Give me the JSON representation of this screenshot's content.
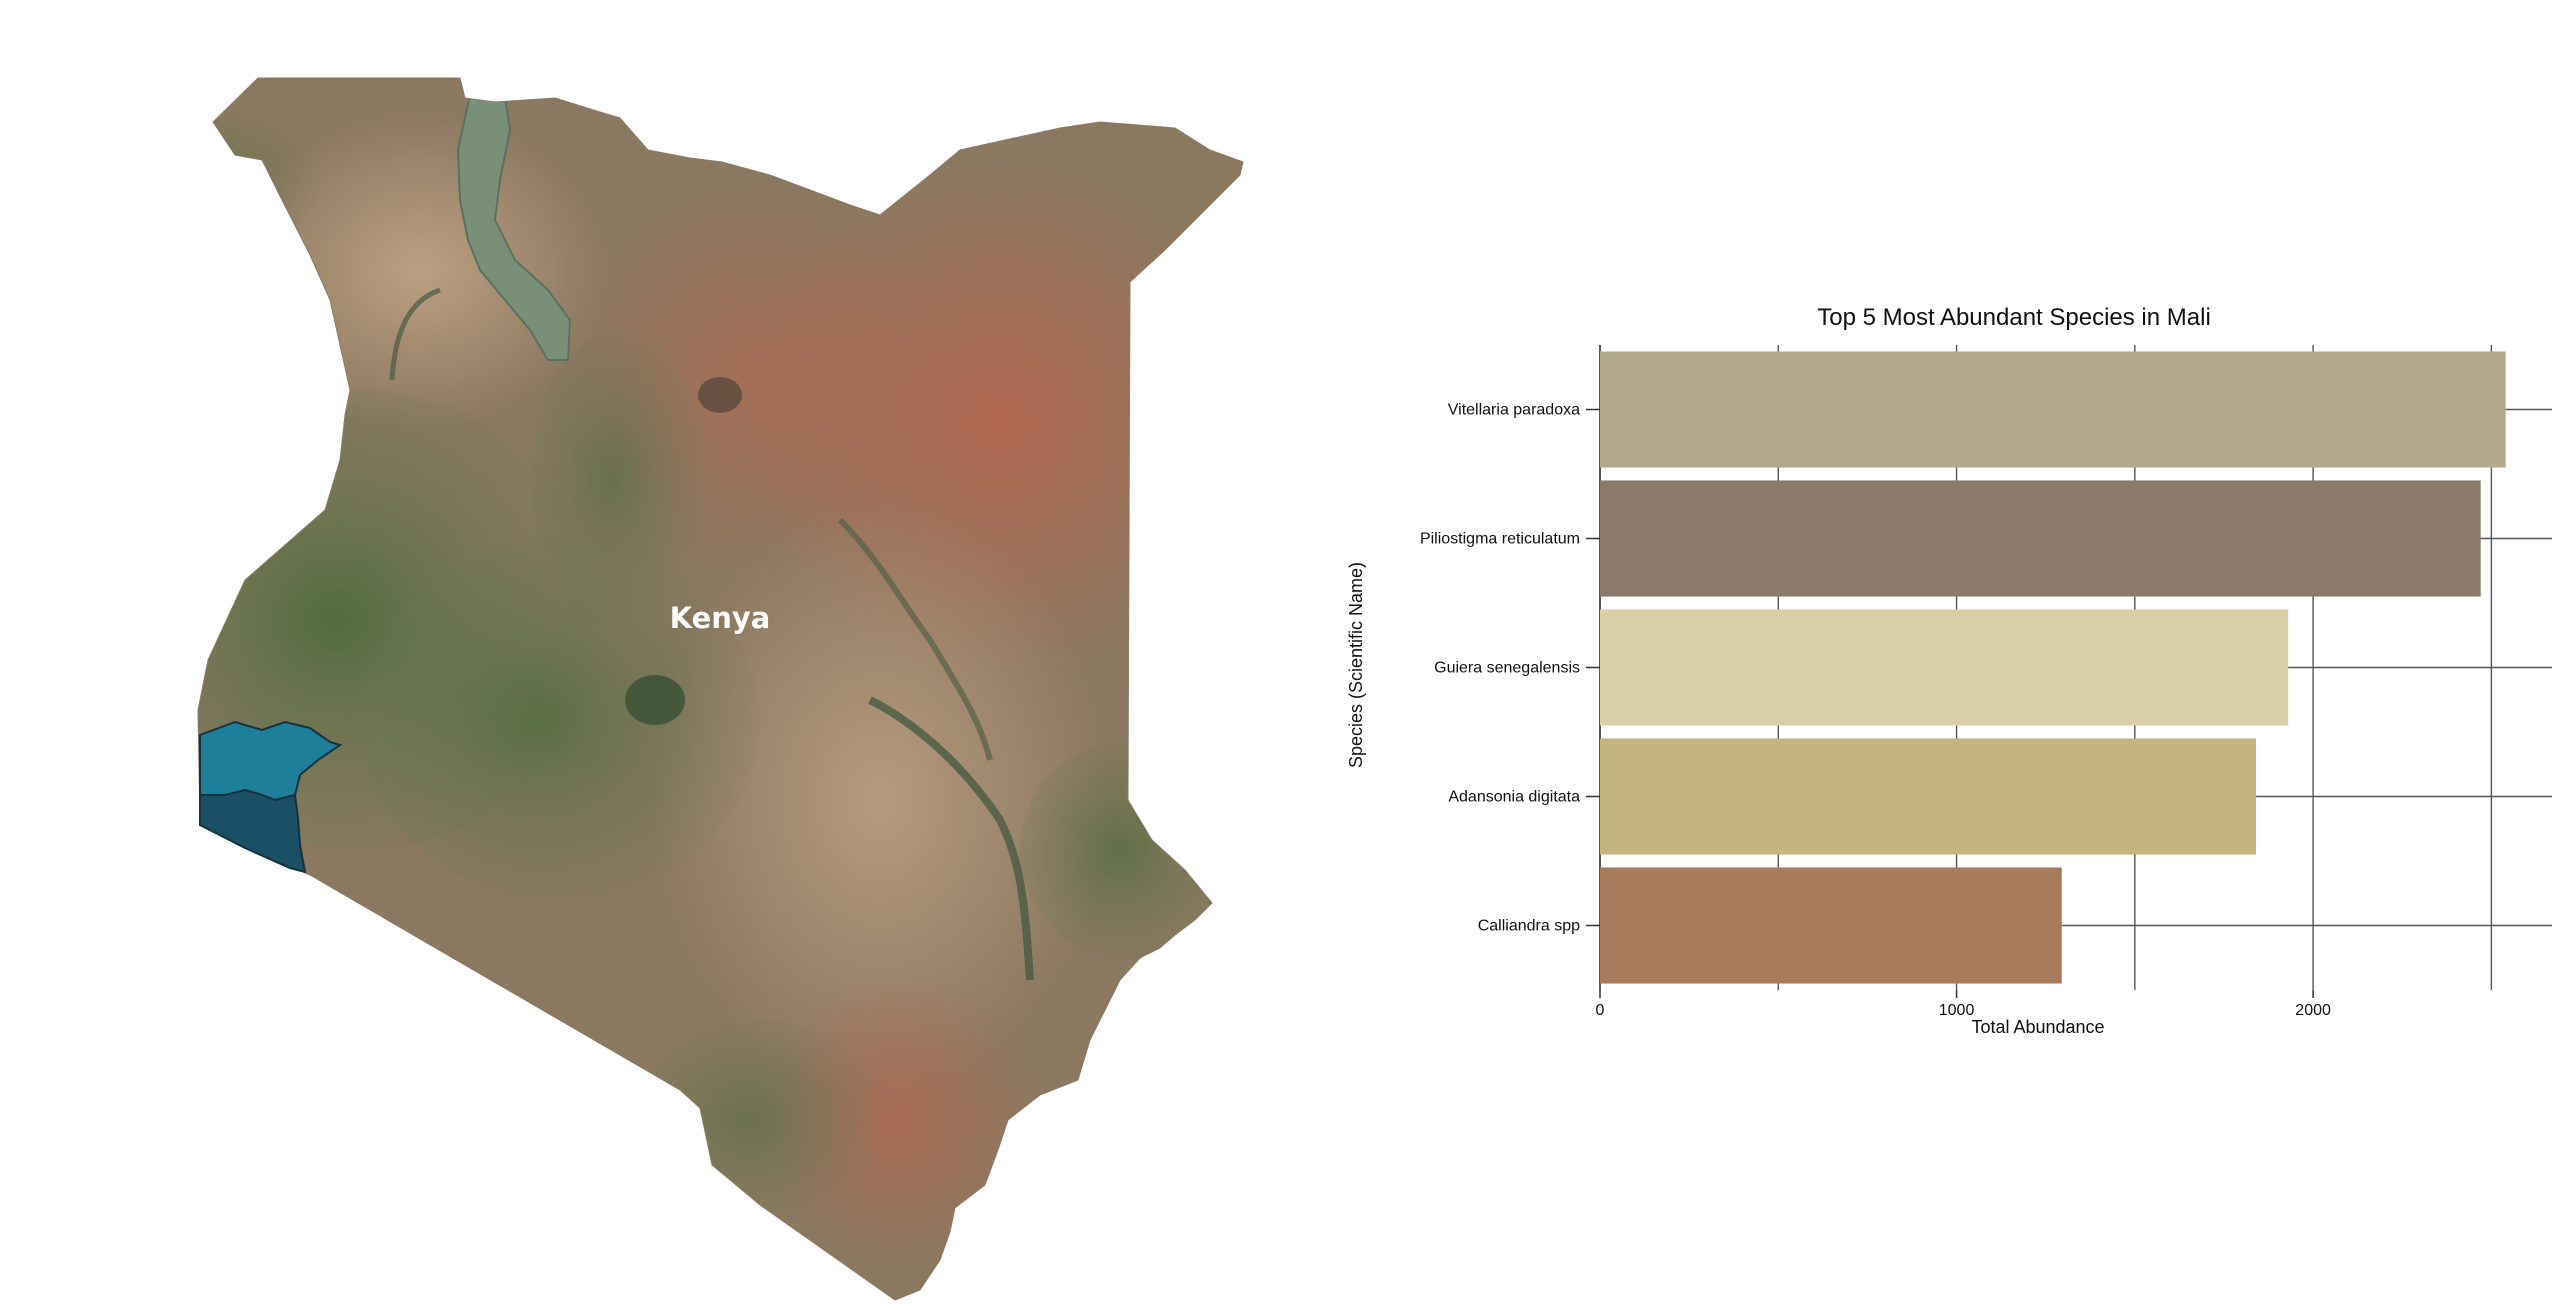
{
  "map": {
    "region_label": "Kenya",
    "colors": {
      "highlight_north": "#1e7f9a",
      "highlight_south": "#1b4f66",
      "terrain_base": "#8b7860"
    }
  },
  "chart_data": {
    "type": "bar",
    "orientation": "horizontal",
    "title": "Top 5 Most Abundant Species in Mali",
    "xlabel": "Total Abundance",
    "ylabel": "Species (Scientific Name)",
    "categories": [
      "Vitellaria paradoxa",
      "Piliostigma reticulatum",
      "Guiera senegalensis",
      "Adansonia digitata",
      "Calliandra spp"
    ],
    "values": [
      2540,
      2470,
      1930,
      1840,
      1295
    ],
    "colors": [
      "#b3a98d",
      "#8b7a6a",
      "#dacea6",
      "#c4b47e",
      "#a77a5c"
    ],
    "xticks": [
      0,
      1000,
      2000
    ],
    "xlim": [
      0,
      2670
    ],
    "grid": true
  }
}
